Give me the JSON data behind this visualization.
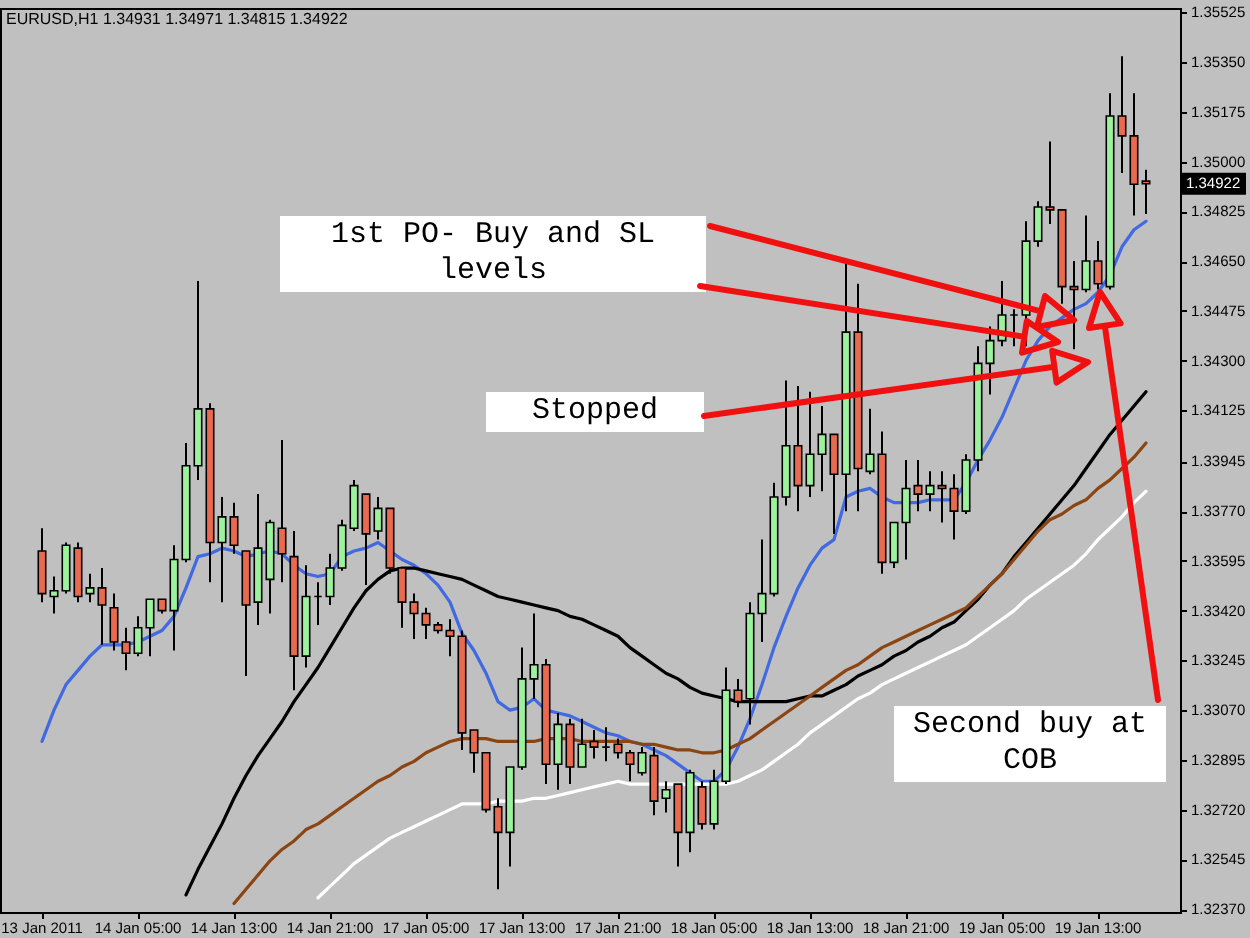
{
  "chart_data": {
    "type": "candlestick",
    "title": "EURUSD,H1 1.34931 1.34971 1.34815 1.34922",
    "categories": [
      "13 Jan 2011",
      null,
      null,
      null,
      null,
      null,
      null,
      null,
      "14 Jan 05:00",
      null,
      null,
      null,
      null,
      null,
      null,
      null,
      "14 Jan 13:00",
      null,
      null,
      null,
      null,
      null,
      null,
      null,
      "14 Jan 21:00",
      null,
      null,
      null,
      null,
      null,
      null,
      null,
      "17 Jan 05:00",
      null,
      null,
      null,
      null,
      null,
      null,
      null,
      "17 Jan 13:00",
      null,
      null,
      null,
      null,
      null,
      null,
      null,
      "17 Jan 21:00",
      null,
      null,
      null,
      null,
      null,
      null,
      null,
      "18 Jan 05:00",
      null,
      null,
      null,
      null,
      null,
      null,
      null,
      "18 Jan 13:00",
      null,
      null,
      null,
      null,
      null,
      null,
      null,
      "18 Jan 21:00",
      null,
      null,
      null,
      null,
      null,
      null,
      null,
      "19 Jan 05:00",
      null,
      null,
      null,
      null,
      null,
      null,
      null,
      "19 Jan 13:00",
      null,
      null,
      null,
      null
    ],
    "ohlc": [
      [
        1.3363,
        1.3371,
        1.3345,
        1.3348
      ],
      [
        1.3347,
        1.3354,
        1.3341,
        1.3349
      ],
      [
        1.3349,
        1.3366,
        1.3348,
        1.3365
      ],
      [
        1.3364,
        1.3366,
        1.3345,
        1.3347
      ],
      [
        1.3348,
        1.3355,
        1.3345,
        1.335
      ],
      [
        1.335,
        1.3357,
        1.333,
        1.3344
      ],
      [
        1.3343,
        1.3348,
        1.3328,
        1.3331
      ],
      [
        1.3331,
        1.3336,
        1.3321,
        1.3327
      ],
      [
        1.3327,
        1.334,
        1.3326,
        1.3336
      ],
      [
        1.3336,
        1.3346,
        1.3326,
        1.3346
      ],
      [
        1.3346,
        1.3346,
        1.3341,
        1.3342
      ],
      [
        1.3342,
        1.3365,
        1.3328,
        1.336
      ],
      [
        1.336,
        1.3401,
        1.3359,
        1.3393
      ],
      [
        1.3393,
        1.3458,
        1.3388,
        1.3413
      ],
      [
        1.3413,
        1.3415,
        1.3352,
        1.3366
      ],
      [
        1.3366,
        1.3382,
        1.3345,
        1.3375
      ],
      [
        1.3375,
        1.338,
        1.3362,
        1.3365
      ],
      [
        1.3363,
        1.3363,
        1.3319,
        1.3344
      ],
      [
        1.3345,
        1.3383,
        1.3337,
        1.3364
      ],
      [
        1.3353,
        1.3374,
        1.3341,
        1.3373
      ],
      [
        1.3371,
        1.3402,
        1.3352,
        1.3362
      ],
      [
        1.3361,
        1.337,
        1.3314,
        1.3326
      ],
      [
        1.3326,
        1.3358,
        1.3322,
        1.3347
      ],
      [
        1.3347,
        1.3352,
        1.3337,
        1.3347
      ],
      [
        1.3347,
        1.3362,
        1.3344,
        1.3357
      ],
      [
        1.3357,
        1.3374,
        1.3356,
        1.3372
      ],
      [
        1.3371,
        1.3388,
        1.337,
        1.3386
      ],
      [
        1.3383,
        1.3383,
        1.3351,
        1.3369
      ],
      [
        1.337,
        1.3382,
        1.3367,
        1.3378
      ],
      [
        1.3378,
        1.3378,
        1.3355,
        1.3357
      ],
      [
        1.3357,
        1.3357,
        1.3336,
        1.3345
      ],
      [
        1.3345,
        1.3348,
        1.3332,
        1.3341
      ],
      [
        1.3341,
        1.3343,
        1.3332,
        1.3337
      ],
      [
        1.3337,
        1.3338,
        1.3334,
        1.3335
      ],
      [
        1.3335,
        1.3339,
        1.3326,
        1.3333
      ],
      [
        1.3333,
        1.3335,
        1.3293,
        1.3299
      ],
      [
        1.33,
        1.33,
        1.3285,
        1.3292
      ],
      [
        1.3292,
        1.3292,
        1.3271,
        1.3272
      ],
      [
        1.3273,
        1.3276,
        1.3244,
        1.3264
      ],
      [
        1.3264,
        1.3287,
        1.3252,
        1.3287
      ],
      [
        1.3287,
        1.3329,
        1.3286,
        1.3318
      ],
      [
        1.3318,
        1.3341,
        1.3311,
        1.3323
      ],
      [
        1.3323,
        1.3325,
        1.3281,
        1.3288
      ],
      [
        1.3288,
        1.3306,
        1.3279,
        1.3302
      ],
      [
        1.3302,
        1.3304,
        1.3281,
        1.3287
      ],
      [
        1.3287,
        1.3304,
        1.3287,
        1.3295
      ],
      [
        1.3296,
        1.33,
        1.329,
        1.3294
      ],
      [
        1.3294,
        1.3301,
        1.3289,
        1.3294
      ],
      [
        1.3295,
        1.3297,
        1.329,
        1.3292
      ],
      [
        1.3292,
        1.3293,
        1.3282,
        1.3288
      ],
      [
        1.3285,
        1.3294,
        1.3284,
        1.3292
      ],
      [
        1.3291,
        1.3294,
        1.327,
        1.3275
      ],
      [
        1.3276,
        1.3282,
        1.3271,
        1.3279
      ],
      [
        1.3281,
        1.3281,
        1.3252,
        1.3264
      ],
      [
        1.3264,
        1.3286,
        1.3257,
        1.3285
      ],
      [
        1.328,
        1.3282,
        1.3265,
        1.3267
      ],
      [
        1.3267,
        1.3286,
        1.3265,
        1.3282
      ],
      [
        1.3282,
        1.3322,
        1.3281,
        1.3314
      ],
      [
        1.3314,
        1.3318,
        1.3308,
        1.331
      ],
      [
        1.3311,
        1.3345,
        1.3302,
        1.3341
      ],
      [
        1.3341,
        1.3367,
        1.3331,
        1.3348
      ],
      [
        1.3348,
        1.3387,
        1.3347,
        1.3382
      ],
      [
        1.3382,
        1.3423,
        1.3379,
        1.34
      ],
      [
        1.34,
        1.3421,
        1.3377,
        1.3386
      ],
      [
        1.3386,
        1.3419,
        1.3382,
        1.3397
      ],
      [
        1.3397,
        1.3414,
        1.3384,
        1.3404
      ],
      [
        1.3404,
        1.3404,
        1.3369,
        1.339
      ],
      [
        1.339,
        1.3464,
        1.3377,
        1.344
      ],
      [
        1.344,
        1.3457,
        1.3377,
        1.3392
      ],
      [
        1.3391,
        1.3413,
        1.339,
        1.3397
      ],
      [
        1.3397,
        1.3405,
        1.3355,
        1.3359
      ],
      [
        1.3359,
        1.3373,
        1.3357,
        1.3373
      ],
      [
        1.3373,
        1.3395,
        1.336,
        1.3385
      ],
      [
        1.3386,
        1.3395,
        1.3377,
        1.3383
      ],
      [
        1.3383,
        1.3391,
        1.3377,
        1.3386
      ],
      [
        1.3386,
        1.3391,
        1.3373,
        1.3385
      ],
      [
        1.3385,
        1.339,
        1.3367,
        1.3377
      ],
      [
        1.3377,
        1.3397,
        1.3376,
        1.3395
      ],
      [
        1.3395,
        1.3435,
        1.3391,
        1.3429
      ],
      [
        1.3429,
        1.3442,
        1.3418,
        1.3437
      ],
      [
        1.3437,
        1.3458,
        1.3435,
        1.3446
      ],
      [
        1.3446,
        1.3448,
        1.3435,
        1.3446
      ],
      [
        1.3446,
        1.3479,
        1.3435,
        1.3472
      ],
      [
        1.3472,
        1.3486,
        1.347,
        1.3484
      ],
      [
        1.3484,
        1.3507,
        1.3478,
        1.3483
      ],
      [
        1.3483,
        1.3483,
        1.345,
        1.3456
      ],
      [
        1.3456,
        1.3465,
        1.3434,
        1.3455
      ],
      [
        1.3455,
        1.3481,
        1.3454,
        1.3465
      ],
      [
        1.3465,
        1.3472,
        1.3455,
        1.3457
      ],
      [
        1.3456,
        1.3524,
        1.3455,
        1.3516
      ],
      [
        1.3516,
        1.3537,
        1.3496,
        1.3509
      ],
      [
        1.3509,
        1.3524,
        1.3481,
        1.3492
      ],
      [
        1.34931,
        1.34971,
        1.34815,
        1.34922
      ]
    ],
    "colors": [
      "#ea6a4f",
      "#9cf29c",
      "#9cf29c",
      "#ea6a4f",
      "#9cf29c",
      "#ea6a4f",
      "#ea6a4f",
      "#ea6a4f",
      "#9cf29c",
      "#9cf29c",
      "#ea6a4f",
      "#9cf29c",
      "#9cf29c",
      "#9cf29c",
      "#ea6a4f",
      "#9cf29c",
      "#ea6a4f",
      "#ea6a4f",
      "#9cf29c",
      "#9cf29c",
      "#ea6a4f",
      "#ea6a4f",
      "#9cf29c",
      "#000000",
      "#9cf29c",
      "#9cf29c",
      "#9cf29c",
      "#ea6a4f",
      "#9cf29c",
      "#ea6a4f",
      "#ea6a4f",
      "#ea6a4f",
      "#ea6a4f",
      "#ea6a4f",
      "#ea6a4f",
      "#ea6a4f",
      "#ea6a4f",
      "#ea6a4f",
      "#ea6a4f",
      "#9cf29c",
      "#9cf29c",
      "#9cf29c",
      "#ea6a4f",
      "#9cf29c",
      "#ea6a4f",
      "#9cf29c",
      "#ea6a4f",
      "#000000",
      "#ea6a4f",
      "#ea6a4f",
      "#9cf29c",
      "#ea6a4f",
      "#9cf29c",
      "#ea6a4f",
      "#9cf29c",
      "#ea6a4f",
      "#9cf29c",
      "#9cf29c",
      "#ea6a4f",
      "#9cf29c",
      "#9cf29c",
      "#9cf29c",
      "#9cf29c",
      "#ea6a4f",
      "#9cf29c",
      "#9cf29c",
      "#ea6a4f",
      "#9cf29c",
      "#ea6a4f",
      "#9cf29c",
      "#ea6a4f",
      "#9cf29c",
      "#9cf29c",
      "#ea6a4f",
      "#9cf29c",
      "#ea6a4f",
      "#ea6a4f",
      "#9cf29c",
      "#9cf29c",
      "#9cf29c",
      "#9cf29c",
      "#000000",
      "#9cf29c",
      "#9cf29c",
      "#ea6a4f",
      "#ea6a4f",
      "#ea6a4f",
      "#9cf29c",
      "#ea6a4f",
      "#9cf29c",
      "#ea6a4f",
      "#ea6a4f",
      "#ea6a4f"
    ],
    "series": [
      {
        "type": "line",
        "color": "#4169e1",
        "values": [
          1.3296,
          1.3307,
          1.3316,
          1.3321,
          1.3326,
          1.333,
          1.333,
          1.333,
          1.3331,
          1.3333,
          1.3335,
          1.334,
          1.335,
          1.3361,
          1.3362,
          1.3364,
          1.3363,
          1.3361,
          1.3362,
          1.3363,
          1.3362,
          1.3358,
          1.3355,
          1.3354,
          1.3355,
          1.3361,
          1.3363,
          1.3364,
          1.3366,
          1.3363,
          1.336,
          1.3358,
          1.3355,
          1.3351,
          1.3345,
          1.3334,
          1.3328,
          1.332,
          1.331,
          1.3307,
          1.3308,
          1.3311,
          1.3307,
          1.3306,
          1.3305,
          1.3303,
          1.3301,
          1.3299,
          1.3298,
          1.3296,
          1.3295,
          1.3293,
          1.3291,
          1.3288,
          1.3285,
          1.3282,
          1.3282,
          1.3286,
          1.3294,
          1.3304,
          1.3316,
          1.3329,
          1.334,
          1.335,
          1.3358,
          1.3364,
          1.3367,
          1.3382,
          1.3384,
          1.3385,
          1.3382,
          1.338,
          1.338,
          1.338,
          1.3381,
          1.3381,
          1.3381,
          1.3387,
          1.3395,
          1.3402,
          1.341,
          1.342,
          1.343,
          1.3437,
          1.3442,
          1.3445,
          1.3448,
          1.345,
          1.3454,
          1.346,
          1.347,
          1.3476,
          1.3479
        ]
      },
      {
        "type": "line",
        "color": "#000000",
        "values": [
          null,
          null,
          null,
          null,
          null,
          null,
          null,
          null,
          null,
          null,
          null,
          null,
          1.3242,
          1.3251,
          1.3259,
          1.3267,
          1.3276,
          1.3284,
          1.3291,
          1.3297,
          1.3303,
          1.331,
          1.3316,
          1.3322,
          1.3329,
          1.3336,
          1.3343,
          1.3349,
          1.3353,
          1.3356,
          1.3357,
          1.3357,
          1.3356,
          1.3355,
          1.3354,
          1.3353,
          1.3351,
          1.3349,
          1.3347,
          1.3346,
          1.3345,
          1.3344,
          1.3343,
          1.3342,
          1.334,
          1.3339,
          1.3337,
          1.3335,
          1.3333,
          1.3329,
          1.3326,
          1.3323,
          1.332,
          1.3318,
          1.3315,
          1.3313,
          1.3312,
          1.3311,
          1.331,
          1.331,
          1.331,
          1.331,
          1.331,
          1.3311,
          1.3312,
          1.3312,
          1.3314,
          1.3316,
          1.3319,
          1.3321,
          1.3323,
          1.3326,
          1.3328,
          1.3331,
          1.3333,
          1.3336,
          1.3338,
          1.3342,
          1.3346,
          1.3351,
          1.3355,
          1.3361,
          1.3366,
          1.3371,
          1.3376,
          1.3381,
          1.3386,
          1.3392,
          1.3398,
          1.3404,
          1.3409,
          1.3414,
          1.3419
        ]
      },
      {
        "type": "line",
        "color": "#8b4513",
        "values": [
          null,
          null,
          null,
          null,
          null,
          null,
          null,
          null,
          null,
          null,
          null,
          null,
          null,
          null,
          null,
          null,
          1.3239,
          1.3244,
          1.3249,
          1.3254,
          1.3258,
          1.3261,
          1.3265,
          1.3267,
          1.327,
          1.3273,
          1.3276,
          1.3279,
          1.3282,
          1.3284,
          1.3287,
          1.3289,
          1.3292,
          1.3294,
          1.3296,
          1.3297,
          1.3297,
          1.3297,
          1.3296,
          1.3296,
          1.3296,
          1.3296,
          1.3297,
          1.3297,
          1.3297,
          1.3296,
          1.3296,
          1.3296,
          1.3296,
          1.3296,
          1.3295,
          1.3295,
          1.3294,
          1.3293,
          1.3293,
          1.3292,
          1.3292,
          1.3293,
          1.3295,
          1.3297,
          1.33,
          1.3303,
          1.3306,
          1.3309,
          1.3312,
          1.3315,
          1.3318,
          1.3321,
          1.3323,
          1.3326,
          1.3329,
          1.3331,
          1.3333,
          1.3335,
          1.3337,
          1.3339,
          1.3341,
          1.3343,
          1.3347,
          1.3351,
          1.3355,
          1.336,
          1.3365,
          1.337,
          1.3374,
          1.3376,
          1.3379,
          1.3381,
          1.3385,
          1.3388,
          1.3392,
          1.3396,
          1.3401
        ]
      },
      {
        "type": "line",
        "color": "#ffffff",
        "values": [
          null,
          null,
          null,
          null,
          null,
          null,
          null,
          null,
          null,
          null,
          null,
          null,
          null,
          null,
          null,
          null,
          null,
          null,
          null,
          null,
          null,
          null,
          null,
          1.3241,
          1.3245,
          1.3249,
          1.3253,
          1.3256,
          1.3259,
          1.3262,
          1.3264,
          1.3266,
          1.3268,
          1.327,
          1.3272,
          1.3274,
          1.3274,
          1.3274,
          1.3275,
          1.3275,
          1.3275,
          1.3276,
          1.3276,
          1.3277,
          1.3278,
          1.3279,
          1.328,
          1.3281,
          1.3282,
          1.3281,
          1.3281,
          1.3281,
          1.3281,
          1.3281,
          1.3281,
          1.3281,
          1.3281,
          1.3281,
          1.3282,
          1.3284,
          1.3286,
          1.3289,
          1.3292,
          1.3295,
          1.3299,
          1.3302,
          1.3305,
          1.3308,
          1.3311,
          1.3313,
          1.3316,
          1.3318,
          1.332,
          1.3322,
          1.3324,
          1.3326,
          1.3328,
          1.333,
          1.3333,
          1.3336,
          1.3339,
          1.3342,
          1.3346,
          1.3349,
          1.3352,
          1.3355,
          1.3358,
          1.3362,
          1.3367,
          1.3371,
          1.3375,
          1.338,
          1.3384
        ]
      }
    ],
    "ylim": [
      1.3236,
      1.3554
    ],
    "yticks": [
      1.35525,
      {
        "value": 1.3535,
        "label": "1.35350"
      },
      1.35175,
      {
        "value": 1.35,
        "label": "1.35000"
      },
      1.34825,
      {
        "value": 1.3465,
        "label": "1.34650"
      },
      1.34475,
      {
        "value": 1.343,
        "label": "1.34300"
      },
      1.34125,
      1.33945,
      {
        "value": 1.3377,
        "label": "1.33770"
      },
      1.33595,
      {
        "value": 1.3342,
        "label": "1.33420"
      },
      1.33245,
      {
        "value": 1.3307,
        "label": "1.33070"
      },
      1.32895,
      {
        "value": 1.3272,
        "label": "1.32720"
      },
      1.32545,
      {
        "value": 1.3237,
        "label": "1.32370"
      }
    ],
    "annotations": [
      "1st PO- Buy and SL levels",
      "Stopped",
      "Second buy at COB",
      "1.34922"
    ]
  }
}
